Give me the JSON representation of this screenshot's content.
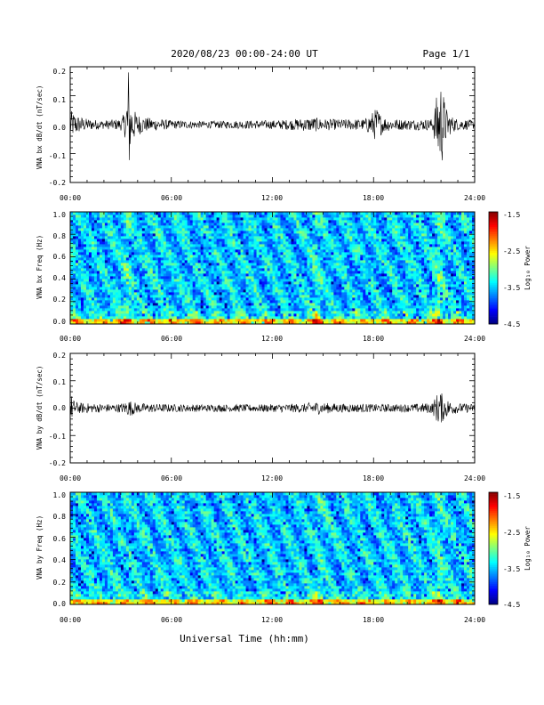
{
  "header": {
    "title": "2020/08/23  00:00-24:00 UT",
    "page": "Page 1/1"
  },
  "footer": {
    "xlabel": "Universal Time (hh:mm)"
  },
  "colorbar": {
    "label": "Log₁₀ Power",
    "ticks": [
      "-1.5",
      "-2.5",
      "-3.5",
      "-4.5"
    ],
    "range": [
      -4.5,
      -1.5
    ]
  },
  "chart_data": [
    {
      "type": "line",
      "ylabel": "VNA bx dB/dt (nT/sec)",
      "xlim_hours": [
        0,
        24
      ],
      "ylim": [
        -0.2,
        0.2
      ],
      "xticks": [
        "00:00",
        "06:00",
        "12:00",
        "18:00",
        "24:00"
      ],
      "yticks": [
        "0.2",
        "0.1",
        "0.0",
        "-0.1",
        "-0.2"
      ],
      "series": [
        {
          "x_hours": [
            0.0,
            0.5,
            1.0,
            2.0,
            3.0,
            3.3,
            3.45,
            3.6,
            3.9,
            4.5,
            6.0,
            8.0,
            10.0,
            12.0,
            13.0,
            14.5,
            15.0,
            16.0,
            17.5,
            18.2,
            18.5,
            19.0,
            20.0,
            21.5,
            21.8,
            22.0,
            22.3,
            22.6,
            23.0,
            24.0
          ],
          "amplitude": [
            0.05,
            0.03,
            0.02,
            0.015,
            0.02,
            0.05,
            0.22,
            0.08,
            0.04,
            0.025,
            0.015,
            0.012,
            0.014,
            0.015,
            0.018,
            0.025,
            0.02,
            0.018,
            0.02,
            0.06,
            0.03,
            0.02,
            0.018,
            0.02,
            0.12,
            0.16,
            0.06,
            0.03,
            0.02,
            0.015
          ]
        }
      ]
    },
    {
      "type": "heatmap",
      "ylabel": "VNA bx Freq (Hz)",
      "xlim_hours": [
        0,
        24
      ],
      "ylim": [
        0,
        1.0
      ],
      "xticks": [
        "00:00",
        "06:00",
        "12:00",
        "18:00",
        "24:00"
      ],
      "yticks": [
        "1.0",
        "0.8",
        "0.6",
        "0.4",
        "0.2",
        "0.0"
      ],
      "zlim": [
        -4.5,
        -1.5
      ]
    },
    {
      "type": "line",
      "ylabel": "VNA by dB/dt (nT/sec)",
      "xlim_hours": [
        0,
        24
      ],
      "ylim": [
        -0.2,
        0.2
      ],
      "xticks": [
        "00:00",
        "06:00",
        "12:00",
        "18:00",
        "24:00"
      ],
      "yticks": [
        "0.2",
        "0.1",
        "0.0",
        "-0.1",
        "-0.2"
      ],
      "series": [
        {
          "x_hours": [
            0.0,
            0.2,
            0.5,
            1.0,
            2.0,
            3.0,
            3.5,
            4.0,
            6.0,
            9.0,
            12.0,
            14.0,
            14.5,
            15.0,
            16.0,
            18.0,
            20.0,
            21.5,
            21.9,
            22.2,
            22.6,
            23.0,
            24.0
          ],
          "amplitude": [
            0.06,
            0.03,
            0.02,
            0.018,
            0.015,
            0.016,
            0.03,
            0.018,
            0.014,
            0.013,
            0.014,
            0.017,
            0.025,
            0.02,
            0.016,
            0.015,
            0.014,
            0.02,
            0.07,
            0.04,
            0.025,
            0.018,
            0.015
          ]
        }
      ]
    },
    {
      "type": "heatmap",
      "ylabel": "VNA by Freq (Hz)",
      "xlim_hours": [
        0,
        24
      ],
      "ylim": [
        0,
        1.0
      ],
      "xticks": [
        "00:00",
        "06:00",
        "12:00",
        "18:00",
        "24:00"
      ],
      "yticks": [
        "1.0",
        "0.8",
        "0.6",
        "0.4",
        "0.2",
        "0.0"
      ],
      "zlim": [
        -4.5,
        -1.5
      ]
    }
  ]
}
